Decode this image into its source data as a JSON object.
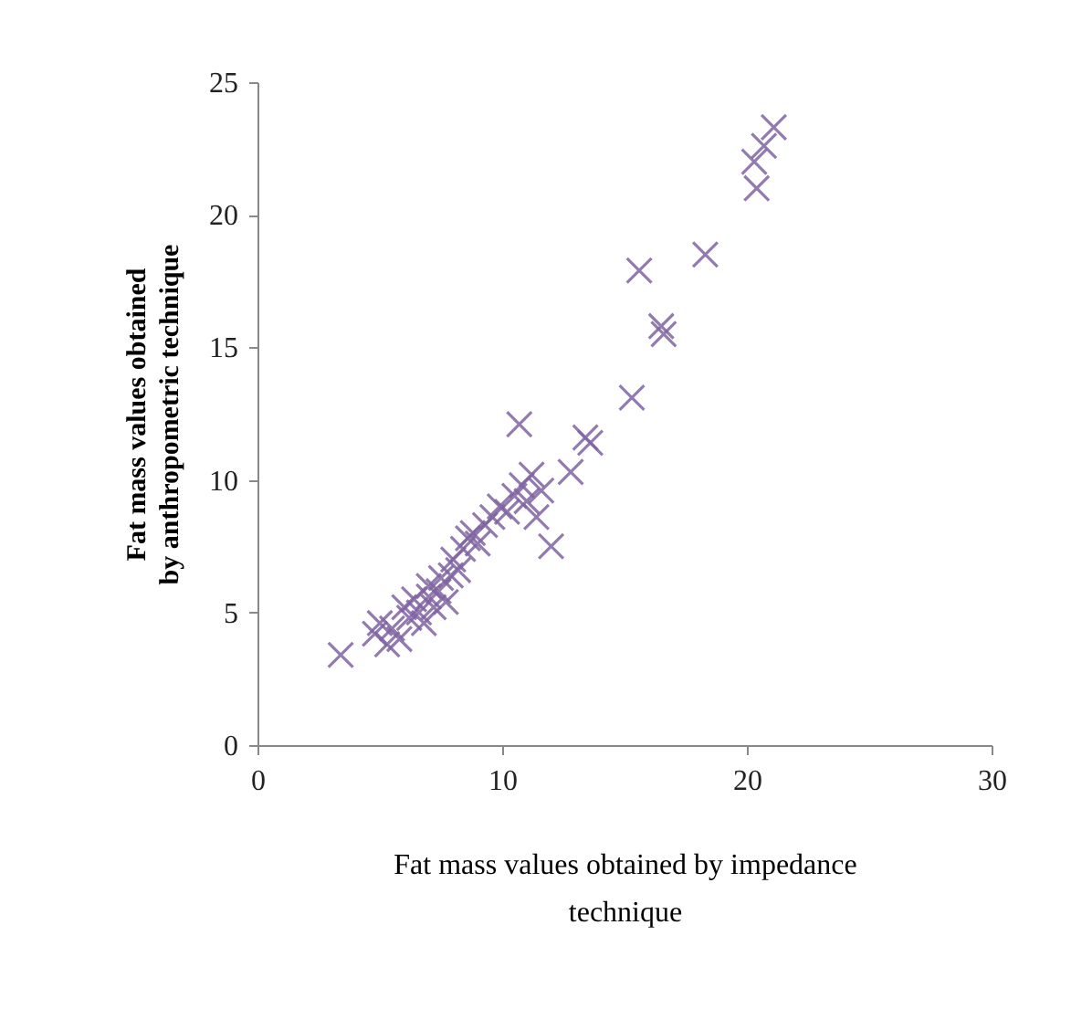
{
  "chart_data": {
    "type": "scatter",
    "xlabel": "Fat mass values obtained by impedance technique",
    "ylabel": "Fat mass values obtained by anthropometric technique",
    "xlim": [
      0,
      30
    ],
    "ylim": [
      0,
      25
    ],
    "xticks": [
      0,
      10,
      20,
      30
    ],
    "yticks": [
      0,
      5,
      10,
      15,
      20,
      25
    ],
    "marker": "cross",
    "grid": false,
    "series": [
      {
        "color": "#8064a2",
        "x": [
          3.4,
          4.8,
          5.0,
          5.3,
          5.5,
          5.8,
          6.0,
          6.2,
          6.4,
          6.6,
          6.8,
          7.0,
          7.0,
          7.2,
          7.4,
          7.5,
          7.7,
          7.9,
          8.0,
          8.2,
          8.4,
          8.6,
          8.8,
          9.0,
          9.3,
          9.6,
          9.9,
          10.2,
          10.5,
          10.7,
          10.8,
          11.0,
          11.2,
          11.4,
          11.6,
          12.0,
          12.8,
          13.4,
          13.6,
          15.3,
          15.6,
          16.5,
          16.6,
          18.3,
          20.3,
          20.4,
          20.7,
          21.1
        ],
        "values": [
          3.4,
          4.2,
          4.6,
          3.8,
          4.4,
          4.0,
          5.2,
          4.8,
          5.5,
          5.0,
          4.6,
          5.6,
          6.0,
          5.2,
          5.8,
          6.3,
          5.4,
          6.4,
          7.0,
          6.6,
          7.4,
          7.8,
          8.0,
          7.6,
          8.3,
          8.6,
          9.0,
          8.8,
          9.4,
          12.1,
          9.8,
          9.2,
          10.2,
          8.6,
          9.6,
          7.5,
          10.3,
          11.6,
          11.4,
          13.1,
          17.9,
          15.8,
          15.5,
          18.5,
          22.0,
          21.0,
          22.6,
          23.3
        ]
      }
    ]
  }
}
